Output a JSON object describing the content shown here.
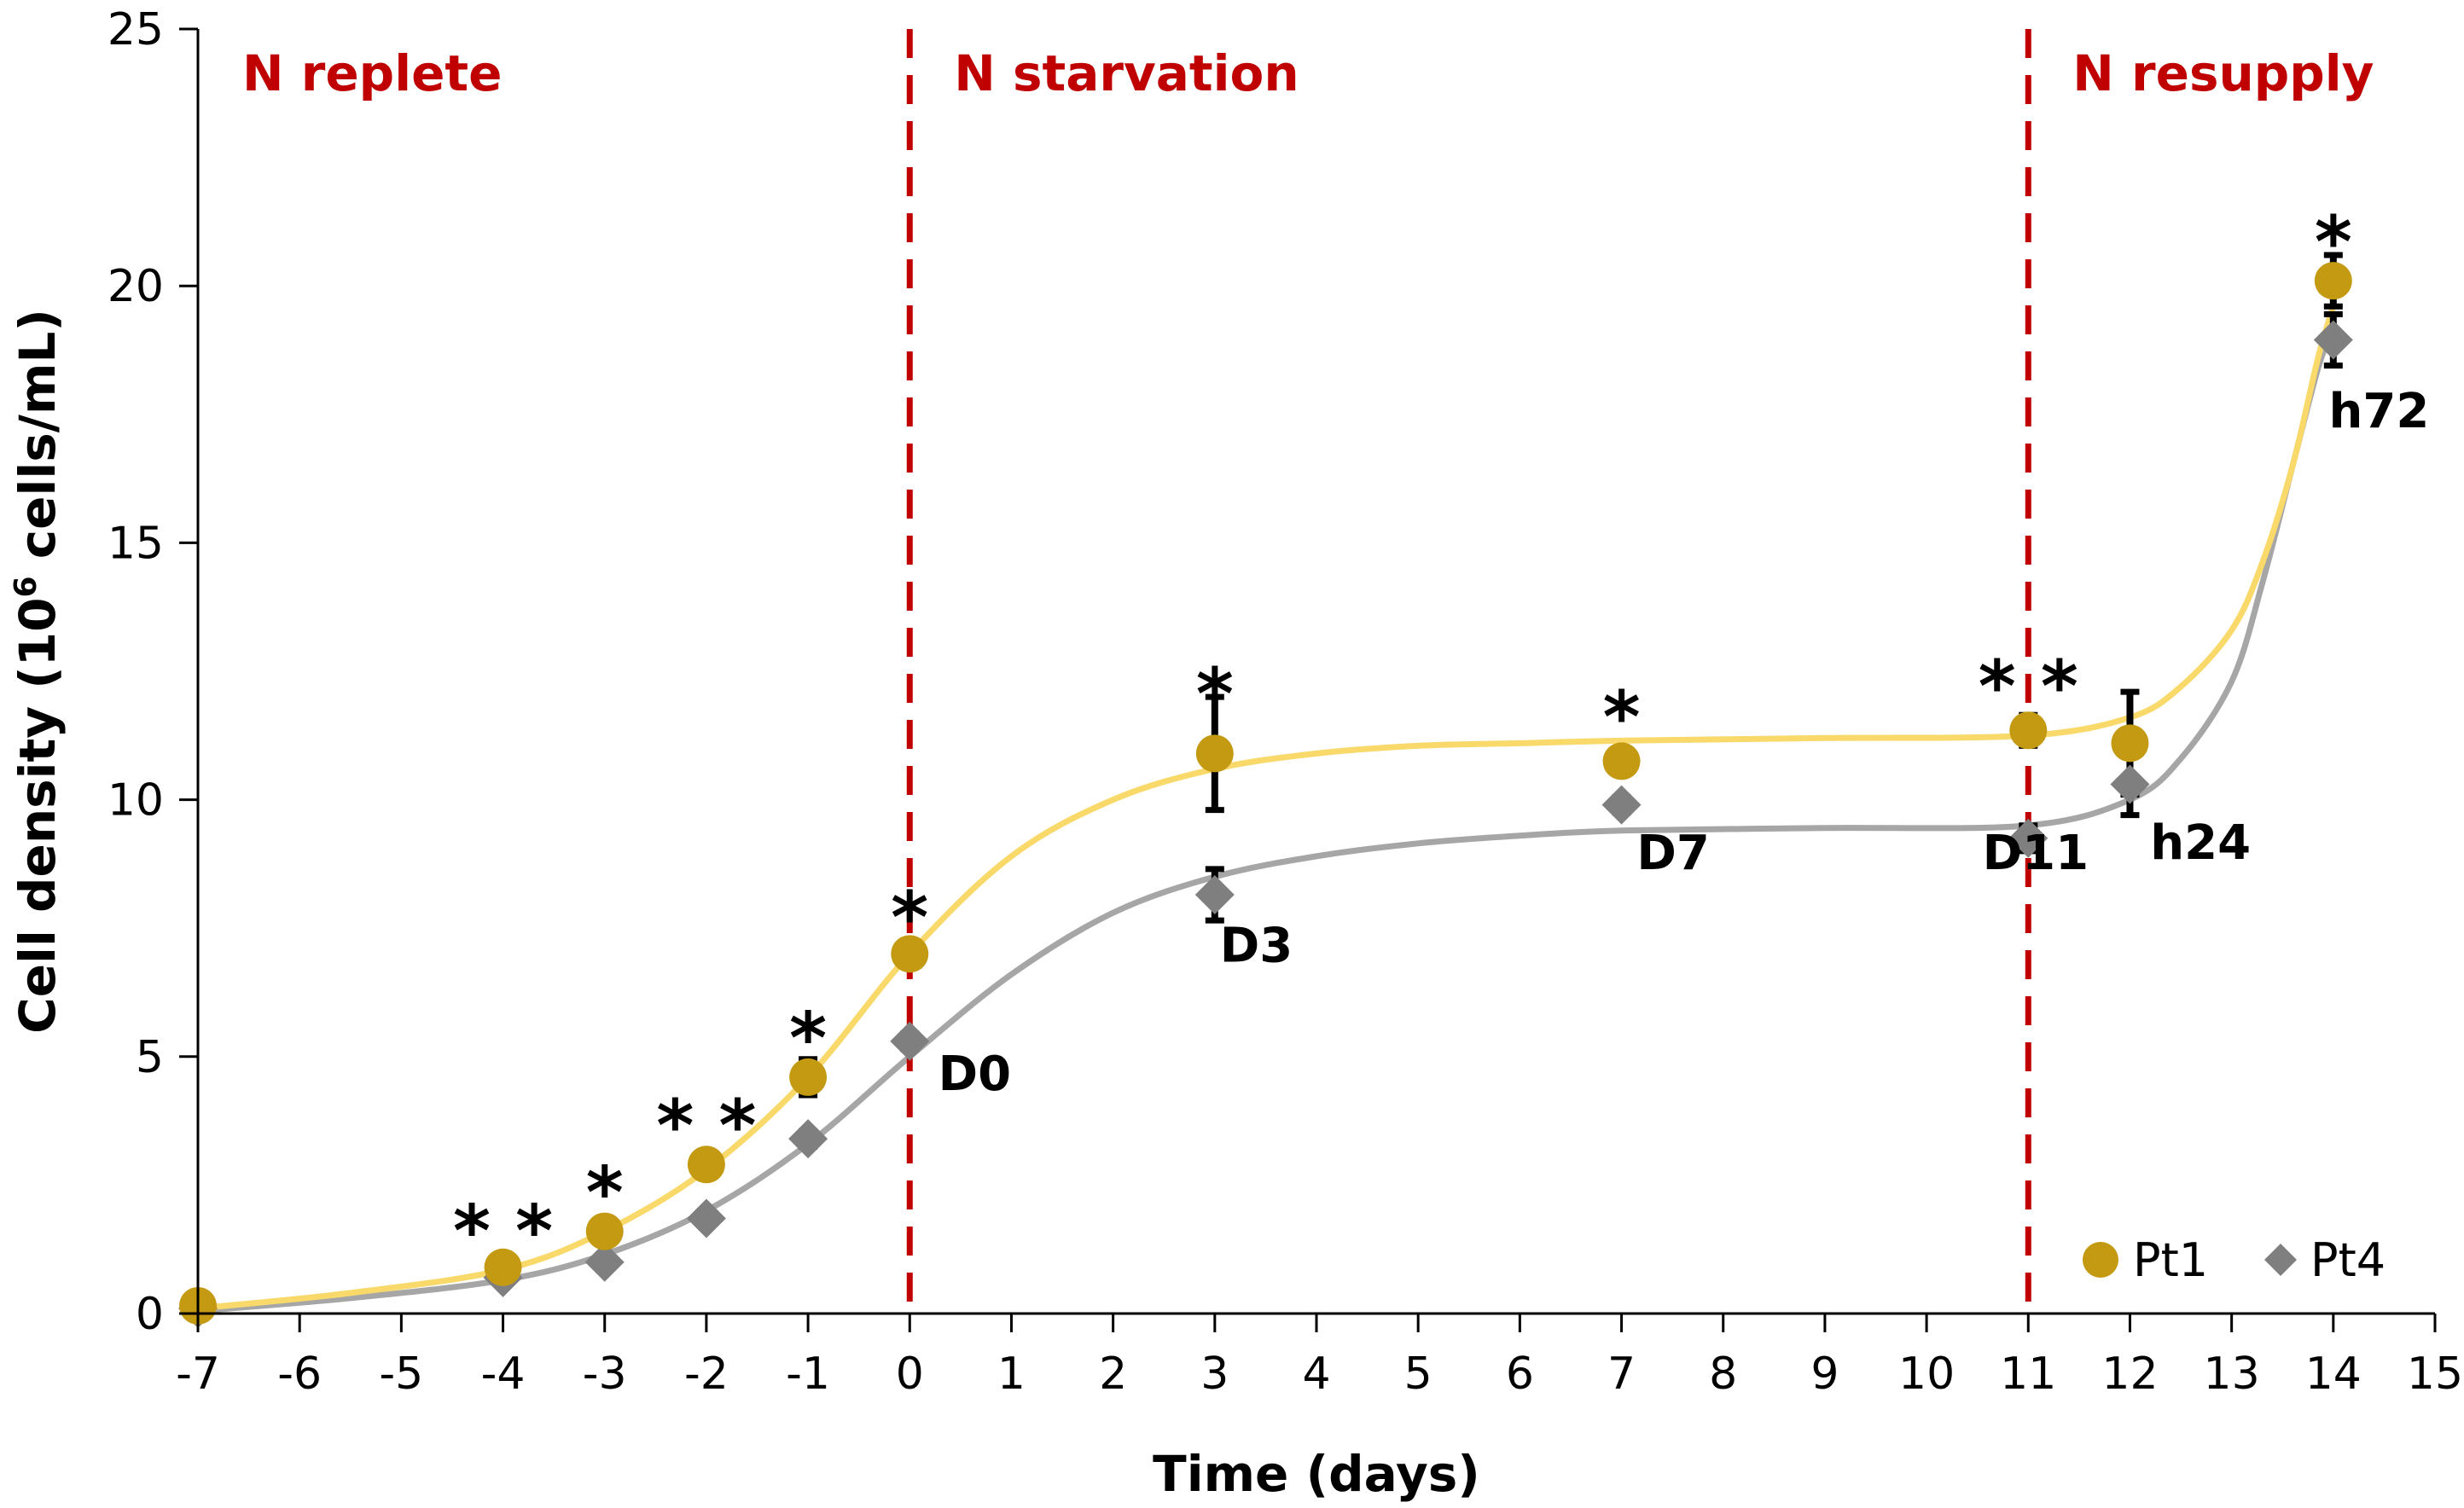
{
  "chart_data": {
    "type": "scatter",
    "xlabel": "Time (days)",
    "ylabel_prefix": "Cell density (10",
    "ylabel_sup": "6",
    "ylabel_suffix": " cells/mL)",
    "xlim": [
      -7,
      15
    ],
    "ylim": [
      0,
      25
    ],
    "x_ticks": [
      -7,
      -6,
      -5,
      -4,
      -3,
      -2,
      -1,
      0,
      1,
      2,
      3,
      4,
      5,
      6,
      7,
      8,
      9,
      10,
      11,
      12,
      13,
      14,
      15
    ],
    "y_ticks": [
      0,
      5,
      10,
      15,
      20,
      25
    ],
    "phases": [
      {
        "label": "N replete",
        "x": -7
      },
      {
        "label": "N starvation",
        "x": 0
      },
      {
        "label": "N resupply",
        "x": 11
      }
    ],
    "phase_boundaries": [
      0,
      11
    ],
    "series": [
      {
        "name": "Pt1",
        "marker": "circle",
        "color": "#C49A12",
        "curve_color": "#F8D96A",
        "points": [
          {
            "x": -7,
            "y": 0.15,
            "err": 0.1
          },
          {
            "x": -4,
            "y": 0.9,
            "err": 0.1
          },
          {
            "x": -3,
            "y": 1.6,
            "err": 0.15
          },
          {
            "x": -2,
            "y": 2.9,
            "err": 0.15
          },
          {
            "x": -1,
            "y": 4.6,
            "err": 0.35
          },
          {
            "x": 0,
            "y": 7.0,
            "err": 0.2
          },
          {
            "x": 3,
            "y": 10.9,
            "err": 1.1
          },
          {
            "x": 7,
            "y": 10.75,
            "err": 0.25
          },
          {
            "x": 11,
            "y": 11.35,
            "err": 0.3
          },
          {
            "x": 12,
            "y": 11.1,
            "err": 1.0
          },
          {
            "x": 14,
            "y": 20.1,
            "err": 0.5
          }
        ],
        "curve": {
          "x": [
            -7,
            -5.5,
            -4,
            -3,
            -2,
            -1,
            0,
            1,
            2,
            3,
            4,
            5,
            6,
            7,
            9,
            11,
            12,
            12.5,
            13,
            13.3,
            13.6,
            13.85,
            14
          ],
          "y": [
            0.1,
            0.4,
            0.85,
            1.6,
            2.8,
            4.6,
            7.0,
            8.9,
            10.0,
            10.6,
            10.9,
            11.05,
            11.1,
            11.15,
            11.2,
            11.25,
            11.6,
            12.2,
            13.3,
            14.6,
            16.5,
            18.6,
            19.6
          ]
        }
      },
      {
        "name": "Pt4",
        "marker": "diamond",
        "color": "#7F7F7F",
        "curve_color": "#A6A6A6",
        "points": [
          {
            "x": -7,
            "y": 0.1,
            "err": 0.05
          },
          {
            "x": -4,
            "y": 0.7,
            "err": 0.05
          },
          {
            "x": -3,
            "y": 1.0,
            "err": 0.05
          },
          {
            "x": -2,
            "y": 1.85,
            "err": 0.1
          },
          {
            "x": -1,
            "y": 3.4,
            "err": 0.15
          },
          {
            "x": 0,
            "y": 5.3,
            "err": 0.15
          },
          {
            "x": 3,
            "y": 8.15,
            "err": 0.5
          },
          {
            "x": 7,
            "y": 9.9,
            "err": 0.15
          },
          {
            "x": 11,
            "y": 9.25,
            "err": 0.25
          },
          {
            "x": 12,
            "y": 10.3,
            "err": 0.6
          },
          {
            "x": 14,
            "y": 18.95,
            "err": 0.5
          }
        ],
        "curve": {
          "x": [
            -7,
            -5.5,
            -4,
            -3,
            -2,
            -1,
            0,
            1,
            2,
            3,
            4,
            5,
            6,
            7,
            9,
            11,
            12,
            12.5,
            13,
            13.3,
            13.6,
            13.85,
            14
          ],
          "y": [
            0.05,
            0.3,
            0.65,
            1.15,
            2.0,
            3.3,
            5.0,
            6.6,
            7.8,
            8.5,
            8.9,
            9.15,
            9.3,
            9.4,
            9.45,
            9.5,
            10.0,
            10.8,
            12.3,
            14.2,
            16.5,
            18.4,
            19.2
          ]
        }
      }
    ],
    "annotations": [
      {
        "text": "D0",
        "x": 0.28,
        "y": 4.35
      },
      {
        "text": "D3",
        "x": 3.05,
        "y": 6.85
      },
      {
        "text": "D7",
        "x": 7.15,
        "y": 8.65
      },
      {
        "text": "D11",
        "x": 10.55,
        "y": 8.65
      },
      {
        "text": "h24",
        "x": 12.2,
        "y": 8.85
      },
      {
        "text": "h72",
        "x": 14.45,
        "y": 17.25
      }
    ],
    "significance": [
      {
        "text": "* *",
        "x": -4,
        "y": 1.85
      },
      {
        "text": "*",
        "x": -3,
        "y": 2.6
      },
      {
        "text": "* *",
        "x": -2,
        "y": 3.9
      },
      {
        "text": "*",
        "x": -1,
        "y": 5.6
      },
      {
        "text": "*",
        "x": 0,
        "y": 7.95
      },
      {
        "text": "*",
        "x": 3,
        "y": 12.3
      },
      {
        "text": "*",
        "x": 7,
        "y": 11.85
      },
      {
        "text": "* *",
        "x": 11,
        "y": 12.45
      },
      {
        "text": "*",
        "x": 14,
        "y": 21.1
      }
    ],
    "legend": {
      "position": "bottom-right",
      "entries": [
        "Pt1",
        "Pt4"
      ]
    },
    "colors": {
      "phase_text": "#C00000",
      "phase_line": "#C00000",
      "axis": "#000000"
    }
  }
}
